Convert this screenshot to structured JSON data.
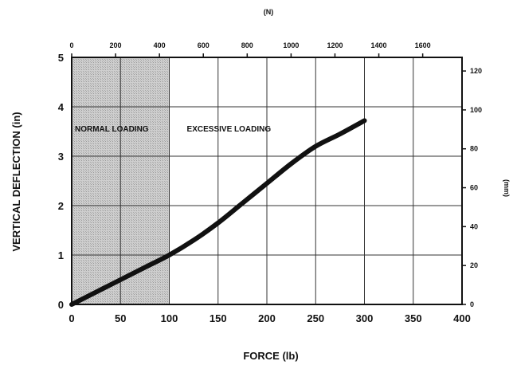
{
  "chart_data": {
    "type": "line",
    "xlabel": "FORCE (lb)",
    "ylabel": "VERTICAL DEFLECTION (in)",
    "x2label": "(N)",
    "y2label": "(mm)",
    "xlim": [
      0,
      400
    ],
    "ylim": [
      0,
      5
    ],
    "x2lim": [
      0,
      1779.3
    ],
    "y2lim": [
      0,
      127
    ],
    "x_ticks": [
      0,
      50,
      100,
      150,
      200,
      250,
      300,
      350,
      400
    ],
    "y_ticks": [
      0,
      1,
      2,
      3,
      4,
      5
    ],
    "x2_ticks": [
      0,
      200,
      400,
      600,
      800,
      1000,
      1200,
      1400,
      1600
    ],
    "y2_ticks": [
      0,
      20,
      40,
      60,
      80,
      100,
      120
    ],
    "grid": true,
    "shaded_region": {
      "x_from": 0,
      "x_to": 100,
      "label": "NORMAL LOADING"
    },
    "annotations": [
      "NORMAL LOADING",
      "EXCESSIVE LOADING"
    ],
    "series": [
      {
        "x": [
          0,
          25,
          50,
          75,
          100,
          125,
          150,
          175,
          200,
          225,
          250,
          275,
          300
        ],
        "y": [
          0,
          0.25,
          0.5,
          0.75,
          1.0,
          1.3,
          1.65,
          2.05,
          2.45,
          2.85,
          3.2,
          3.45,
          3.72
        ]
      }
    ],
    "colors": {
      "line": "#111111",
      "shade": "#bdbdbd",
      "grid": "#333333"
    }
  }
}
